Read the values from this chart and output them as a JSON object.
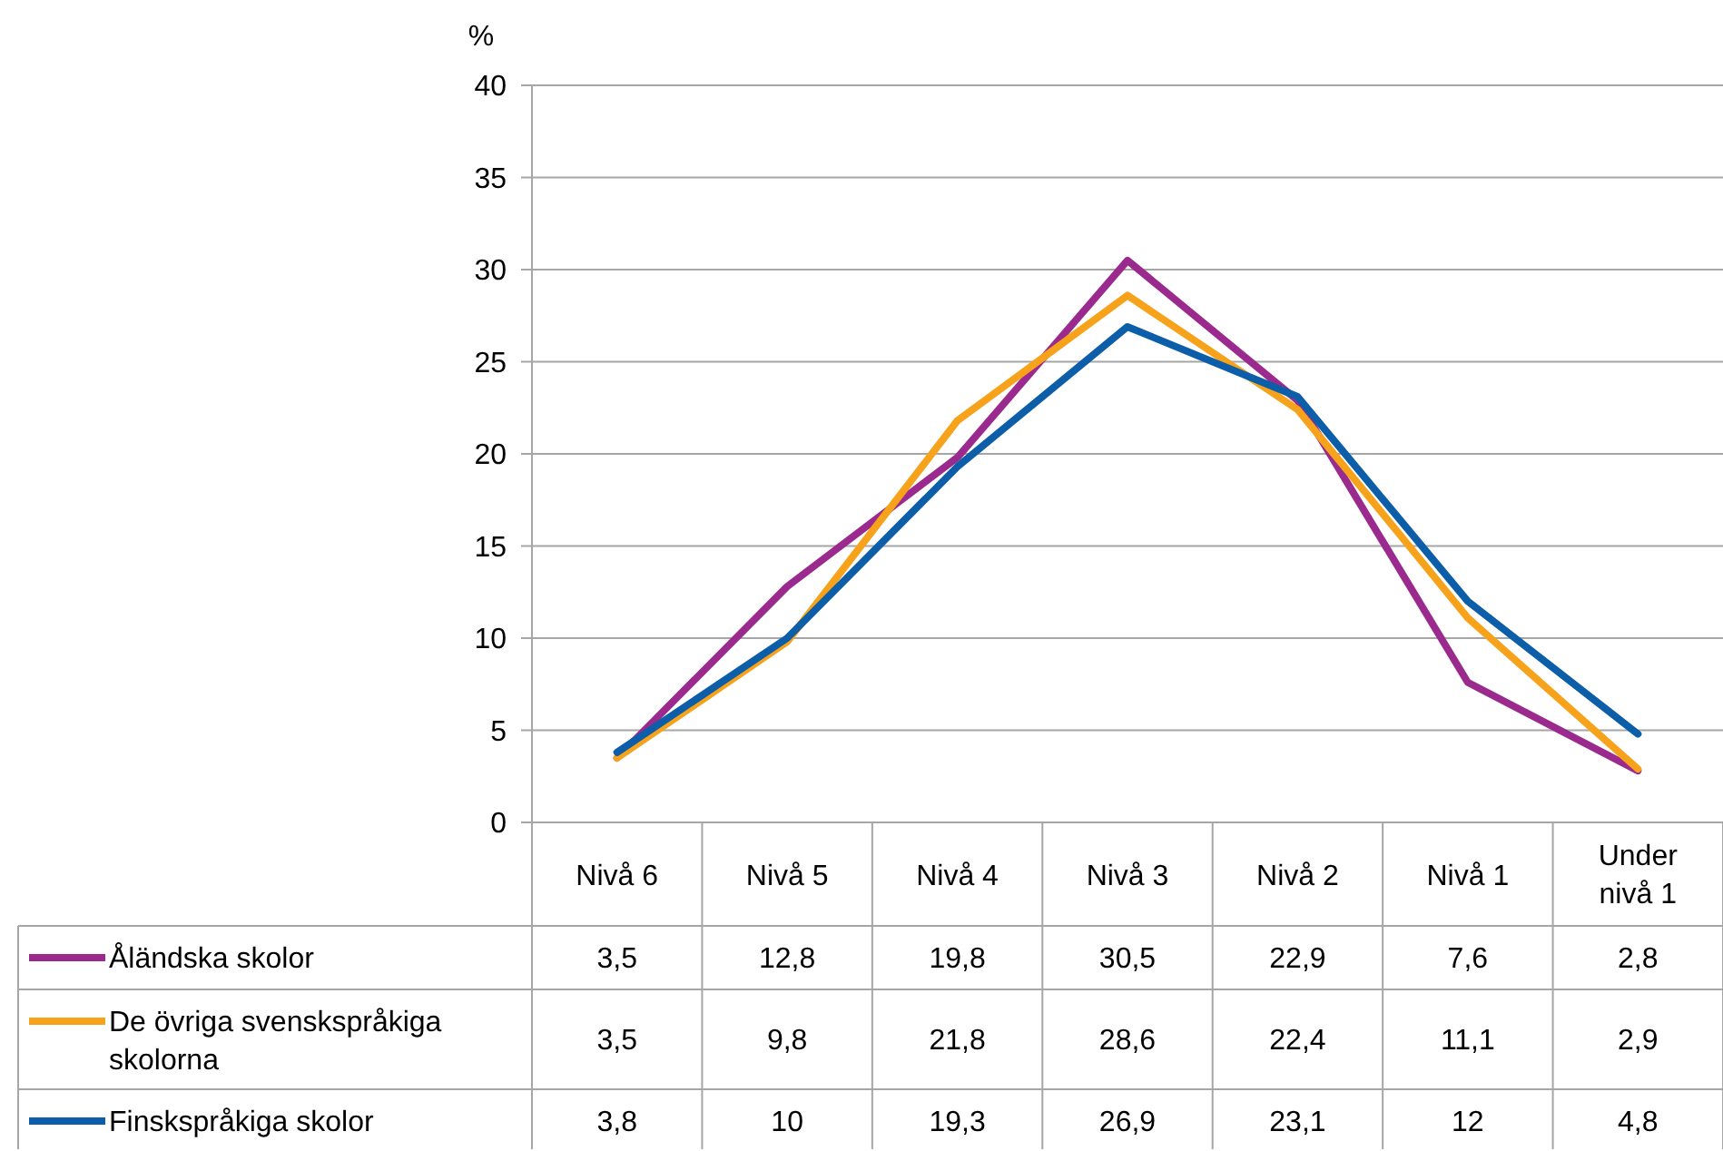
{
  "chart_data": {
    "type": "line",
    "ylabel": "%",
    "categories": [
      "Nivå 6",
      "Nivå 5",
      "Nivå 4",
      "Nivå 3",
      "Nivå 2",
      "Nivå 1",
      "Under nivå 1"
    ],
    "series": [
      {
        "name": "Åländska skolor",
        "color": "#9b2a8e",
        "values": [
          3.5,
          12.8,
          19.8,
          30.5,
          22.9,
          7.6,
          2.8
        ],
        "value_labels": [
          "3,5",
          "12,8",
          "19,8",
          "30,5",
          "22,9",
          "7,6",
          "2,8"
        ]
      },
      {
        "name": "De övriga svenskspråkiga skolorna",
        "color": "#f7a21b",
        "values": [
          3.5,
          9.8,
          21.8,
          28.6,
          22.4,
          11.1,
          2.9
        ],
        "value_labels": [
          "3,5",
          "9,8",
          "21,8",
          "28,6",
          "22,4",
          "11,1",
          "2,9"
        ]
      },
      {
        "name": "Finskspråkiga skolor",
        "color": "#0c5ea8",
        "values": [
          3.8,
          10,
          19.3,
          26.9,
          23.1,
          12,
          4.8
        ],
        "value_labels": [
          "3,8",
          "10",
          "19,3",
          "26,9",
          "23,1",
          "12",
          "4,8"
        ]
      }
    ],
    "ylim": [
      0,
      40
    ],
    "yticks": [
      0,
      5,
      10,
      15,
      20,
      25,
      30,
      35,
      40
    ],
    "grid": "y",
    "legend": "bottom left",
    "marker": "none",
    "line_style": "solid"
  }
}
